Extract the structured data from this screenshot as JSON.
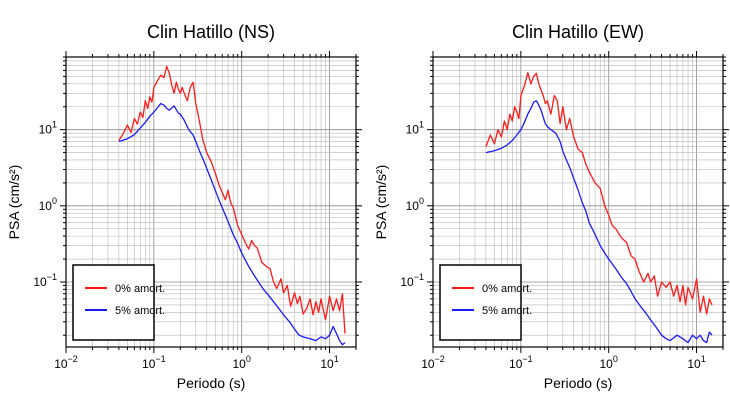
{
  "chart_data": [
    {
      "type": "line",
      "title": "Clin Hatillo (NS)",
      "xlabel": "Periodo (s)",
      "ylabel": "PSA (cm/s²)",
      "x_scale": "log",
      "y_scale": "log",
      "xlim": [
        0.01,
        20
      ],
      "ylim": [
        0.014,
        90
      ],
      "x_ticks": [
        {
          "value": 0.01,
          "base": "10",
          "exp": "−2"
        },
        {
          "value": 0.1,
          "base": "10",
          "exp": "−1"
        },
        {
          "value": 1,
          "base": "10",
          "exp": "0"
        },
        {
          "value": 10,
          "base": "10",
          "exp": "1"
        }
      ],
      "y_ticks": [
        {
          "value": 0.1,
          "base": "10",
          "exp": "−1"
        },
        {
          "value": 1,
          "base": "10",
          "exp": "0"
        },
        {
          "value": 10,
          "base": "10",
          "exp": "1"
        }
      ],
      "grid": true,
      "legend_position": "bottom-left",
      "series": [
        {
          "name": "0% amort.",
          "color": "#ff1a1a",
          "x": [
            0.04,
            0.045,
            0.05,
            0.055,
            0.06,
            0.065,
            0.07,
            0.075,
            0.08,
            0.085,
            0.09,
            0.095,
            0.1,
            0.11,
            0.12,
            0.13,
            0.14,
            0.15,
            0.16,
            0.17,
            0.18,
            0.19,
            0.2,
            0.21,
            0.22,
            0.24,
            0.26,
            0.28,
            0.3,
            0.33,
            0.36,
            0.4,
            0.45,
            0.5,
            0.55,
            0.6,
            0.65,
            0.7,
            0.75,
            0.8,
            0.9,
            1.0,
            1.1,
            1.2,
            1.3,
            1.4,
            1.5,
            1.7,
            1.9,
            2.1,
            2.3,
            2.5,
            2.8,
            3.0,
            3.3,
            3.6,
            4.0,
            4.3,
            4.6,
            5.0,
            5.5,
            6.0,
            6.5,
            7.0,
            7.5,
            8.0,
            9.0,
            10.0,
            11.0,
            12.0,
            13.0,
            14.0,
            15.0
          ],
          "y": [
            7.2,
            9.0,
            11.5,
            9.2,
            14.0,
            11.8,
            17.0,
            14.5,
            24.0,
            19.0,
            27.0,
            23.0,
            36.0,
            44.0,
            52.0,
            48.0,
            68.0,
            55.0,
            38.0,
            30.0,
            42.0,
            34.0,
            30.0,
            36.0,
            31.0,
            24.0,
            36.0,
            42.0,
            22.0,
            13.0,
            7.5,
            5.0,
            3.8,
            2.7,
            1.9,
            1.5,
            1.2,
            1.6,
            1.1,
            0.95,
            0.55,
            0.42,
            0.33,
            0.27,
            0.35,
            0.3,
            0.28,
            0.18,
            0.16,
            0.15,
            0.1,
            0.082,
            0.11,
            0.072,
            0.09,
            0.048,
            0.072,
            0.052,
            0.065,
            0.038,
            0.045,
            0.06,
            0.037,
            0.055,
            0.04,
            0.06,
            0.032,
            0.065,
            0.042,
            0.06,
            0.042,
            0.07,
            0.021
          ]
        },
        {
          "name": "5% amort.",
          "color": "#1a1aff",
          "x": [
            0.04,
            0.05,
            0.06,
            0.07,
            0.08,
            0.09,
            0.1,
            0.11,
            0.12,
            0.13,
            0.14,
            0.15,
            0.17,
            0.19,
            0.2,
            0.22,
            0.25,
            0.28,
            0.3,
            0.33,
            0.36,
            0.4,
            0.45,
            0.5,
            0.55,
            0.6,
            0.7,
            0.8,
            0.9,
            1.0,
            1.2,
            1.4,
            1.6,
            1.8,
            2.0,
            2.3,
            2.6,
            3.0,
            3.5,
            4.0,
            4.5,
            5.0,
            6.0,
            7.0,
            8.0,
            9.0,
            10.0,
            11.0,
            12.0,
            13.0,
            14.0,
            15.0
          ],
          "y": [
            7.0,
            7.6,
            8.6,
            10.5,
            12.5,
            15.0,
            17.0,
            19.5,
            22.0,
            21.0,
            19.0,
            18.0,
            20.5,
            16.5,
            16.0,
            13.5,
            10.0,
            8.5,
            7.0,
            5.3,
            4.2,
            3.1,
            2.2,
            1.6,
            1.2,
            0.95,
            0.62,
            0.42,
            0.32,
            0.24,
            0.16,
            0.12,
            0.095,
            0.078,
            0.068,
            0.055,
            0.046,
            0.037,
            0.03,
            0.024,
            0.02,
            0.019,
            0.018,
            0.017,
            0.019,
            0.018,
            0.02,
            0.026,
            0.021,
            0.017,
            0.015,
            0.016
          ]
        }
      ]
    },
    {
      "type": "line",
      "title": "Clin Hatillo (EW)",
      "xlabel": "Periodo (s)",
      "ylabel": "PSA (cm/s²)",
      "x_scale": "log",
      "y_scale": "log",
      "xlim": [
        0.01,
        20
      ],
      "ylim": [
        0.014,
        90
      ],
      "x_ticks": [
        {
          "value": 0.01,
          "base": "10",
          "exp": "−2"
        },
        {
          "value": 0.1,
          "base": "10",
          "exp": "−1"
        },
        {
          "value": 1,
          "base": "10",
          "exp": "0"
        },
        {
          "value": 10,
          "base": "10",
          "exp": "1"
        }
      ],
      "y_ticks": [
        {
          "value": 0.1,
          "base": "10",
          "exp": "−1"
        },
        {
          "value": 1,
          "base": "10",
          "exp": "0"
        },
        {
          "value": 10,
          "base": "10",
          "exp": "1"
        }
      ],
      "grid": true,
      "legend_position": "bottom-left",
      "series": [
        {
          "name": "0% amort.",
          "color": "#ff1a1a",
          "x": [
            0.04,
            0.045,
            0.05,
            0.055,
            0.06,
            0.065,
            0.07,
            0.075,
            0.08,
            0.085,
            0.09,
            0.095,
            0.1,
            0.11,
            0.12,
            0.13,
            0.14,
            0.15,
            0.16,
            0.17,
            0.18,
            0.19,
            0.2,
            0.22,
            0.24,
            0.26,
            0.28,
            0.3,
            0.33,
            0.36,
            0.4,
            0.45,
            0.5,
            0.55,
            0.6,
            0.7,
            0.8,
            0.9,
            1.0,
            1.1,
            1.2,
            1.4,
            1.6,
            1.8,
            2.0,
            2.2,
            2.5,
            2.8,
            3.0,
            3.3,
            3.6,
            4.0,
            4.5,
            5.0,
            5.5,
            6.0,
            6.5,
            7.0,
            7.5,
            8.0,
            9.0,
            10.0,
            11.0,
            12.0,
            13.0,
            14.0,
            15.0
          ],
          "y": [
            6.0,
            8.5,
            6.5,
            10.0,
            8.0,
            13.0,
            10.0,
            16.0,
            13.0,
            20.0,
            17.0,
            14.0,
            28.0,
            38.0,
            56.0,
            40.0,
            50.0,
            55.0,
            40.0,
            33.0,
            28.0,
            22.0,
            24.0,
            16.0,
            28.0,
            24.0,
            12.0,
            20.0,
            10.0,
            14.0,
            8.0,
            5.5,
            5.0,
            3.5,
            2.8,
            2.0,
            1.7,
            1.0,
            0.75,
            0.55,
            0.5,
            0.38,
            0.33,
            0.22,
            0.2,
            0.14,
            0.1,
            0.13,
            0.1,
            0.12,
            0.065,
            0.1,
            0.085,
            0.1,
            0.065,
            0.09,
            0.055,
            0.09,
            0.05,
            0.085,
            0.06,
            0.11,
            0.04,
            0.065,
            0.038,
            0.06,
            0.05
          ]
        },
        {
          "name": "5% amort.",
          "color": "#1a1aff",
          "x": [
            0.04,
            0.05,
            0.06,
            0.07,
            0.08,
            0.09,
            0.1,
            0.11,
            0.12,
            0.13,
            0.14,
            0.15,
            0.16,
            0.17,
            0.18,
            0.19,
            0.2,
            0.22,
            0.25,
            0.28,
            0.3,
            0.33,
            0.36,
            0.4,
            0.45,
            0.5,
            0.55,
            0.6,
            0.7,
            0.8,
            0.9,
            1.0,
            1.2,
            1.4,
            1.6,
            1.8,
            2.0,
            2.3,
            2.6,
            3.0,
            3.5,
            4.0,
            4.5,
            5.0,
            6.0,
            7.0,
            8.0,
            9.0,
            10.0,
            11.0,
            12.0,
            13.0,
            14.0,
            15.0
          ],
          "y": [
            5.0,
            5.3,
            5.7,
            6.3,
            7.2,
            8.5,
            10.0,
            12.5,
            16.0,
            19.0,
            23.0,
            24.0,
            21.0,
            18.0,
            14.5,
            12.0,
            11.0,
            10.0,
            9.0,
            7.0,
            5.2,
            4.0,
            3.2,
            2.3,
            1.6,
            1.1,
            0.85,
            0.6,
            0.42,
            0.3,
            0.24,
            0.2,
            0.15,
            0.115,
            0.095,
            0.075,
            0.06,
            0.048,
            0.04,
            0.032,
            0.025,
            0.02,
            0.018,
            0.017,
            0.02,
            0.018,
            0.016,
            0.02,
            0.018,
            0.02,
            0.017,
            0.016,
            0.022,
            0.02
          ]
        }
      ]
    }
  ]
}
